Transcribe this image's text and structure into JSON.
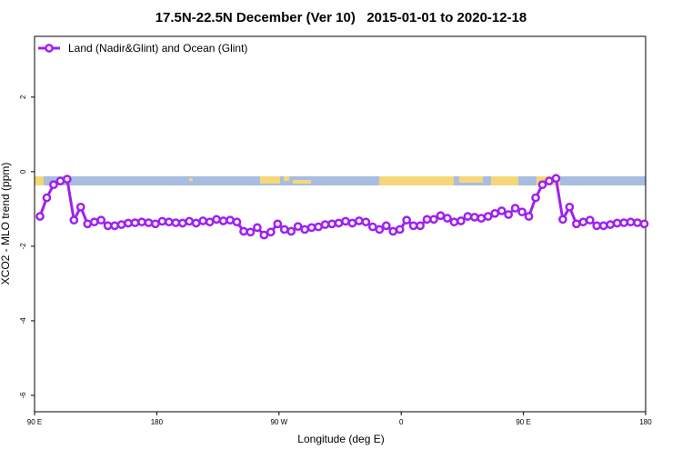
{
  "chart_data": {
    "type": "line",
    "title": "17.5N-22.5N December (Ver 10)   2015-01-01 to 2020-12-18",
    "x_label": "Longitude (deg E)",
    "y_label": "XCO2 - MLO trend (ppm)",
    "xlim": [
      90,
      540
    ],
    "ylim": [
      -6.44,
      3.63
    ],
    "xticks": [
      {
        "value": 90,
        "label": "90 E"
      },
      180,
      {
        "value": 270,
        "label": "90 W"
      },
      {
        "value": 360,
        "label": "0"
      },
      {
        "value": 450,
        "label": "90 E"
      },
      {
        "value": 540,
        "label": "180"
      }
    ],
    "yticks": [
      -6,
      -4,
      -2,
      0,
      2
    ],
    "legend": "top-left",
    "x": [
      94,
      99,
      104,
      109,
      114,
      119,
      124,
      129,
      134,
      139,
      144,
      149,
      154,
      159,
      164,
      169,
      174,
      179,
      184,
      189,
      194,
      199,
      204,
      209,
      214,
      219,
      224,
      229,
      234,
      239,
      244,
      249,
      254,
      259,
      264,
      269,
      274,
      279,
      284,
      289,
      294,
      299,
      304,
      309,
      314,
      319,
      324,
      329,
      334,
      339,
      344,
      349,
      354,
      359,
      364,
      369,
      374,
      379,
      384,
      389,
      394,
      399,
      404,
      409,
      414,
      419,
      424,
      429,
      434,
      439,
      444,
      449,
      454,
      459,
      464,
      469,
      474,
      479,
      484,
      489,
      494,
      499,
      504,
      509,
      514,
      519,
      524,
      529,
      534,
      539
    ],
    "series": [
      {
        "name": "Land (Nadir&Glint) and Ocean (Glint)",
        "color": "#a020f0",
        "values": [
          -1.2,
          -0.7,
          -0.35,
          -0.25,
          -0.2,
          -1.3,
          -0.95,
          -1.4,
          -1.35,
          -1.3,
          -1.45,
          -1.45,
          -1.42,
          -1.38,
          -1.37,
          -1.35,
          -1.37,
          -1.4,
          -1.33,
          -1.35,
          -1.37,
          -1.38,
          -1.33,
          -1.38,
          -1.32,
          -1.35,
          -1.28,
          -1.32,
          -1.3,
          -1.35,
          -1.6,
          -1.62,
          -1.5,
          -1.7,
          -1.62,
          -1.4,
          -1.55,
          -1.6,
          -1.47,
          -1.55,
          -1.5,
          -1.48,
          -1.42,
          -1.4,
          -1.38,
          -1.33,
          -1.38,
          -1.32,
          -1.35,
          -1.48,
          -1.55,
          -1.45,
          -1.6,
          -1.55,
          -1.3,
          -1.45,
          -1.45,
          -1.28,
          -1.28,
          -1.18,
          -1.25,
          -1.35,
          -1.32,
          -1.2,
          -1.22,
          -1.25,
          -1.2,
          -1.12,
          -1.05,
          -1.15,
          -0.98,
          -1.08,
          -1.2,
          -0.7,
          -0.35,
          -0.25,
          -0.18,
          -1.28,
          -0.95,
          -1.4,
          -1.35,
          -1.3,
          -1.45,
          -1.45,
          -1.42,
          -1.38,
          -1.37,
          -1.35,
          -1.37,
          -1.4
        ]
      }
    ]
  }
}
